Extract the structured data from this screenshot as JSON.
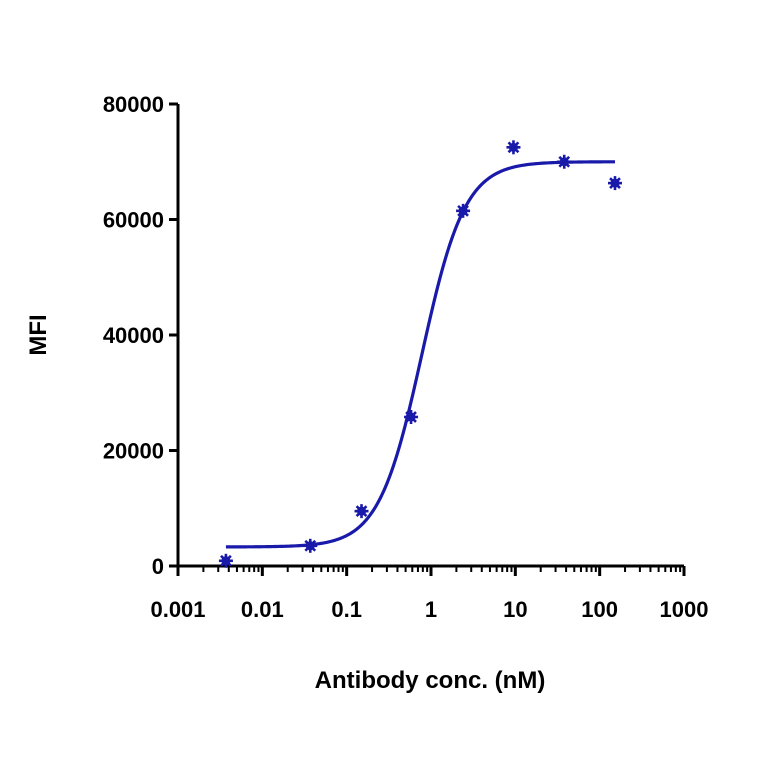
{
  "chart_data": {
    "type": "scatter",
    "title": "",
    "xlabel": "Antibody conc. (nM)",
    "ylabel": "MFI",
    "x_scale": "log",
    "xlim": [
      0.001,
      1000
    ],
    "ylim": [
      0,
      80000
    ],
    "x_tick_labels": [
      "0.001",
      "0.01",
      "0.1",
      "1",
      "10",
      "100",
      "1000"
    ],
    "y_tick_labels": [
      "0",
      "20000",
      "40000",
      "60000",
      "80000"
    ],
    "grid": false,
    "legend": "none",
    "series_color": "#1a1aaa",
    "points": [
      {
        "x": 0.0037,
        "y": 900
      },
      {
        "x": 0.037,
        "y": 3500
      },
      {
        "x": 0.15,
        "y": 9500
      },
      {
        "x": 0.58,
        "y": 25800
      },
      {
        "x": 2.4,
        "y": 61500
      },
      {
        "x": 9.5,
        "y": 72500
      },
      {
        "x": 38,
        "y": 70000
      },
      {
        "x": 152,
        "y": 66300
      }
    ],
    "fit": {
      "model": "4PL",
      "bottom": 3300,
      "top": 70000,
      "ec50": 0.78,
      "hill": 1.7,
      "x_range": [
        0.0037,
        152
      ]
    }
  }
}
